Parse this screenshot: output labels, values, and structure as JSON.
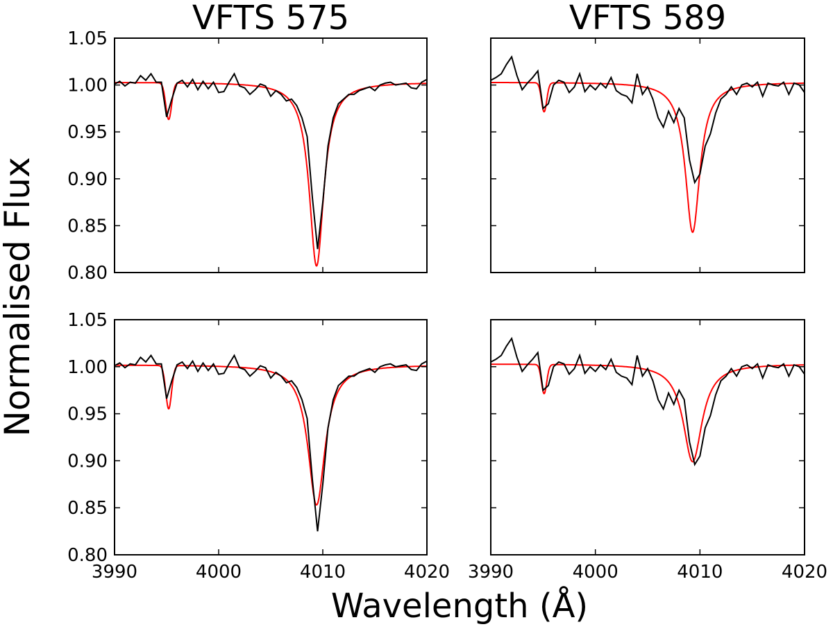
{
  "chart_data": {
    "type": "line",
    "ylabel": "Normalised Flux",
    "xlabel": "Wavelength (Å)",
    "xlim": [
      3990,
      4020
    ],
    "ylim": [
      0.8,
      1.05
    ],
    "xticks": [
      "3990",
      "4000",
      "4010",
      "4020"
    ],
    "yticks": [
      "0.80",
      "0.85",
      "0.90",
      "0.95",
      "1.00",
      "1.05"
    ],
    "grid": false,
    "colors": {
      "observed": "#000000",
      "model": "#ff0000"
    },
    "observed": {
      "x_start": 3990,
      "x_step": 0.5,
      "VFTS 575": [
        1.001,
        1.004,
        0.999,
        1.003,
        1.002,
        1.01,
        1.005,
        1.012,
        1.003,
        1.003,
        0.966,
        0.985,
        1.002,
        1.005,
        0.998,
        1.006,
        0.995,
        1.004,
        0.996,
        1.003,
        0.992,
        0.993,
        1.003,
        1.012,
        0.999,
        0.997,
        0.99,
        0.995,
        1.001,
        0.999,
        0.988,
        0.994,
        0.99,
        0.983,
        0.985,
        0.978,
        0.965,
        0.945,
        0.88,
        0.825,
        0.875,
        0.935,
        0.965,
        0.98,
        0.985,
        0.99,
        0.99,
        0.994,
        0.996,
        0.998,
        0.994,
        1.0,
        1.002,
        1.003,
        1.0,
        1.001,
        1.002,
        0.997,
        0.996,
        1.003,
        1.006
      ],
      "VFTS 589": [
        1.005,
        1.008,
        1.012,
        1.022,
        1.03,
        1.01,
        0.995,
        1.002,
        1.008,
        1.015,
        0.975,
        0.98,
        1.0,
        1.005,
        1.003,
        0.992,
        0.998,
        1.012,
        0.993,
        1.0,
        0.995,
        1.002,
        0.997,
        1.008,
        0.994,
        0.99,
        0.988,
        0.981,
        1.012,
        0.99,
        0.998,
        0.985,
        0.965,
        0.955,
        0.972,
        0.96,
        0.975,
        0.965,
        0.92,
        0.896,
        0.905,
        0.935,
        0.948,
        0.97,
        0.985,
        0.99,
        0.998,
        0.99,
        1.0,
        1.002,
        0.998,
        1.003,
        0.988,
        1.002,
        1.0,
        0.999,
        1.003,
        0.99,
        1.002,
        1.0,
        0.992
      ]
    },
    "panels": [
      {
        "title": "VFTS 575",
        "star": "VFTS 575",
        "row": 0,
        "col": 0,
        "model": {
          "continuum": 1.003,
          "lines": [
            {
              "center": 3995.2,
              "depth": 0.039,
              "width": 0.28,
              "profile": "gauss"
            },
            {
              "center": 4009.4,
              "depth": 0.196,
              "width": 0.85,
              "profile": "lorentz"
            }
          ]
        }
      },
      {
        "title": "VFTS 589",
        "star": "VFTS 589",
        "row": 0,
        "col": 1,
        "model": {
          "continuum": 1.003,
          "lines": [
            {
              "center": 3995.1,
              "depth": 0.031,
              "width": 0.25,
              "profile": "gauss"
            },
            {
              "center": 4009.3,
              "depth": 0.16,
              "width": 0.85,
              "profile": "lorentz"
            }
          ]
        }
      },
      {
        "title": "",
        "star": "VFTS 575",
        "row": 1,
        "col": 0,
        "model": {
          "continuum": 1.002,
          "lines": [
            {
              "center": 3995.2,
              "depth": 0.046,
              "width": 0.28,
              "profile": "gauss"
            },
            {
              "center": 4009.4,
              "depth": 0.149,
              "width": 1.0,
              "profile": "lorentz"
            }
          ]
        }
      },
      {
        "title": "",
        "star": "VFTS 589",
        "row": 1,
        "col": 1,
        "model": {
          "continuum": 1.003,
          "lines": [
            {
              "center": 3995.1,
              "depth": 0.031,
              "width": 0.25,
              "profile": "gauss"
            },
            {
              "center": 4009.3,
              "depth": 0.104,
              "width": 1.1,
              "profile": "lorentz"
            }
          ]
        }
      }
    ]
  }
}
